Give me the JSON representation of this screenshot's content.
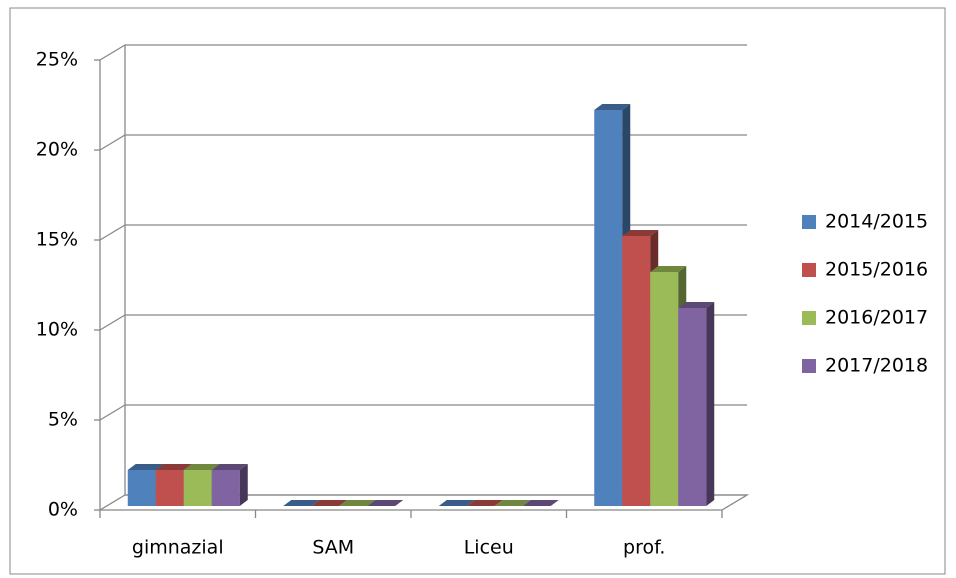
{
  "chart_data": {
    "type": "bar3d",
    "categories": [
      "gimnazial",
      "SAM",
      "Liceu",
      "prof."
    ],
    "series": [
      {
        "name": "2014/2015",
        "color": "#4f81bd",
        "values": [
          2,
          0,
          0,
          22
        ]
      },
      {
        "name": "2015/2016",
        "color": "#c0504d",
        "values": [
          2,
          0,
          0,
          15
        ]
      },
      {
        "name": "2016/2017",
        "color": "#9bbb59",
        "values": [
          2,
          0,
          0,
          13
        ]
      },
      {
        "name": "2017/2018",
        "color": "#8064a2",
        "values": [
          2,
          0,
          0,
          11
        ]
      }
    ],
    "ylim": [
      0,
      25
    ],
    "yticks": [
      {
        "value": 0,
        "label": "0%"
      },
      {
        "value": 5,
        "label": "5%"
      },
      {
        "value": 10,
        "label": "10%"
      },
      {
        "value": 15,
        "label": "15%"
      },
      {
        "value": 20,
        "label": "20%"
      },
      {
        "value": 25,
        "label": "25%"
      }
    ],
    "grid": true,
    "legend": "right"
  }
}
